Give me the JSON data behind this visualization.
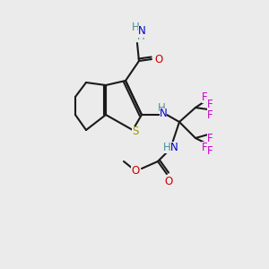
{
  "bg_color": "#ebebeb",
  "bond_color": "#1a1a1a",
  "atom_colors": {
    "N": "#4a9090",
    "N_blue": "#0000cc",
    "O": "#cc0000",
    "S": "#999900",
    "F": "#cc00cc",
    "H": "#4a9090"
  },
  "font_size": 8.5,
  "lw": 1.5
}
